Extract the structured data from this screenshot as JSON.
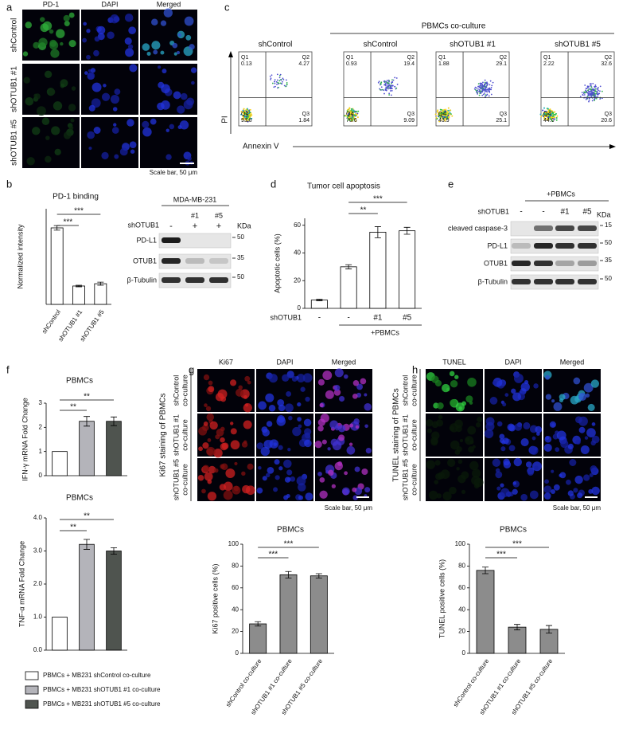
{
  "panels": {
    "a": {
      "label": "a",
      "columns": [
        "PD-1",
        "DAPI",
        "Merged"
      ],
      "rows": [
        "shControl",
        "shOTUB1 #1",
        "shOTUB1 #5"
      ],
      "scale": "Scale bar, 50 μm"
    },
    "b": {
      "label": "b",
      "blot": {
        "header": "MDA-MB-231",
        "row_label": "shOTUB1",
        "lanes_top": [
          "#1",
          "#5"
        ],
        "lanes": [
          "-",
          "+",
          "+"
        ],
        "unit": "KDa",
        "bands": [
          "PD-L1",
          "OTUB1",
          "β-Tubulin"
        ],
        "markers": [
          "50",
          "35",
          "50"
        ]
      }
    },
    "c": {
      "label": "c",
      "group": "PBMCs co-culture",
      "x_label": "Annexin V",
      "y_label": "PI",
      "quadrants": [
        "Q1",
        "Q2",
        "Q3",
        "Q4"
      ],
      "plots": [
        {
          "title": "shControl",
          "values": [
            "0.13",
            "4.27",
            "1.84",
            "93.8"
          ]
        },
        {
          "title": "shControl",
          "values": [
            "0.93",
            "19.4",
            "9.09",
            "70.6"
          ]
        },
        {
          "title": "shOTUB1 #1",
          "values": [
            "1.88",
            "29.1",
            "25.1",
            "43.9"
          ]
        },
        {
          "title": "shOTUB1 #5",
          "values": [
            "2.22",
            "32.6",
            "20.6",
            "44.6"
          ]
        }
      ]
    },
    "d": {
      "label": "d"
    },
    "e": {
      "label": "e",
      "blot": {
        "header": "+PBMCs",
        "row_label": "shOTUB1",
        "lanes": [
          "-",
          "-",
          "#1",
          "#5"
        ],
        "unit": "KDa",
        "bands": [
          "cleaved caspase-3",
          "PD-L1",
          "OTUB1",
          "β-Tubulin"
        ],
        "markers": [
          "15",
          "50",
          "35",
          "50"
        ]
      }
    },
    "f": {
      "label": "f",
      "legend": [
        "PBMCs + MB231 shControl co-culture",
        "PBMCs + MB231 shOTUB1 #1 co-culture",
        "PBMCs + MB231 shOTUB1 #5 co-culture"
      ]
    },
    "g": {
      "label": "g",
      "side": "Ki67 staining of PBMCs",
      "columns": [
        "Ki67",
        "DAPI",
        "Merged"
      ],
      "rows": [
        [
          "shControl",
          "co-culture"
        ],
        [
          "shOTUB1 #1",
          "co-culture"
        ],
        [
          "shOTUB1 #5",
          "co-culture"
        ]
      ],
      "scale": "Scale bar, 50 μm"
    },
    "h": {
      "label": "h",
      "side": "TUNEL staining of PBMCs",
      "columns": [
        "TUNEL",
        "DAPI",
        "Merged"
      ],
      "rows": [
        [
          "shControl",
          "co-culture"
        ],
        [
          "shOTUB1 #1",
          "co-culture"
        ],
        [
          "shOTUB1 #5",
          "co-culture"
        ]
      ],
      "scale": "Scale bar, 50 μm"
    }
  },
  "chart_data": [
    {
      "type": "bar",
      "title": "PD-1 binding",
      "y_label": "Normalized intensity",
      "categories": [
        "shControl",
        "shOTUB1 #1",
        "shOTUB1 #5"
      ],
      "values": [
        1.0,
        0.24,
        0.27
      ],
      "errors": [
        0.03,
        0.01,
        0.02
      ],
      "colors": [
        "#ffffff",
        "#ffffff",
        "#ffffff"
      ],
      "ylim": [
        0,
        1.25
      ],
      "significance": [
        "***",
        "***"
      ]
    },
    {
      "type": "bar",
      "title": "Tumor cell apoptosis",
      "y_label": "Apoptotic cells (%)",
      "categories": [
        "-",
        "-",
        "#1",
        "#5"
      ],
      "x_row_label": "shOTUB1",
      "group_label": "+PBMCs",
      "values": [
        6,
        30,
        55,
        56
      ],
      "errors": [
        0.5,
        1.5,
        4,
        2.5
      ],
      "colors": [
        "#ffffff",
        "#ffffff",
        "#ffffff",
        "#ffffff"
      ],
      "ylim": [
        0,
        65
      ],
      "yticks": [
        0,
        20,
        40,
        60
      ],
      "significance": [
        "**",
        "***"
      ]
    },
    {
      "type": "bar",
      "title": "PBMCs",
      "y_label": "IFN-γ mRNA Fold Change",
      "values": [
        1,
        2.25,
        2.25
      ],
      "errors": [
        0,
        0.2,
        0.18
      ],
      "colors": [
        "#ffffff",
        "#b4b4ba",
        "#4f544f"
      ],
      "ylim": [
        0,
        3
      ],
      "yticks": [
        0,
        1,
        2,
        3
      ],
      "significance": [
        "**",
        "**"
      ]
    },
    {
      "type": "bar",
      "title": "PBMCs",
      "y_label": "TNF-α mRNA Fold Change",
      "values": [
        1,
        3.2,
        3.0
      ],
      "errors": [
        0,
        0.15,
        0.1
      ],
      "colors": [
        "#ffffff",
        "#b4b4ba",
        "#4f544f"
      ],
      "ylim": [
        0,
        4
      ],
      "yticks": [
        {
          "value": 0,
          "label": "0.0"
        },
        {
          "value": 1,
          "label": "1.0"
        },
        {
          "value": 2,
          "label": "2.0"
        },
        {
          "value": 3,
          "label": "3.0"
        },
        {
          "value": 4,
          "label": "4.0"
        }
      ],
      "significance": [
        "**",
        "**"
      ]
    },
    {
      "type": "bar",
      "title": "PBMCs",
      "y_label": "Ki67 positive cells (%)",
      "categories": [
        "shControl co-culture",
        "shOTUB1 #1 co-culture",
        "shOTUB1 #5 co-culture"
      ],
      "values": [
        27,
        72,
        71
      ],
      "errors": [
        2,
        3,
        2
      ],
      "colors": [
        "#8c8c8c",
        "#8c8c8c",
        "#8c8c8c"
      ],
      "ylim": [
        0,
        100
      ],
      "yticks": [
        0,
        20,
        40,
        60,
        80,
        100
      ],
      "significance": [
        "***",
        "***"
      ]
    },
    {
      "type": "bar",
      "title": "PBMCs",
      "y_label": "TUNEL positive cells (%)",
      "categories": [
        "shControl co-culture",
        "shOTUB1 #1 co-culture",
        "shOTUB1 #5 co-culture"
      ],
      "values": [
        76,
        24,
        22
      ],
      "errors": [
        3,
        2.5,
        3.5
      ],
      "colors": [
        "#8c8c8c",
        "#8c8c8c",
        "#8c8c8c"
      ],
      "ylim": [
        0,
        100
      ],
      "yticks": [
        0,
        20,
        40,
        60,
        80,
        100
      ],
      "significance": [
        "***",
        "***"
      ]
    }
  ]
}
